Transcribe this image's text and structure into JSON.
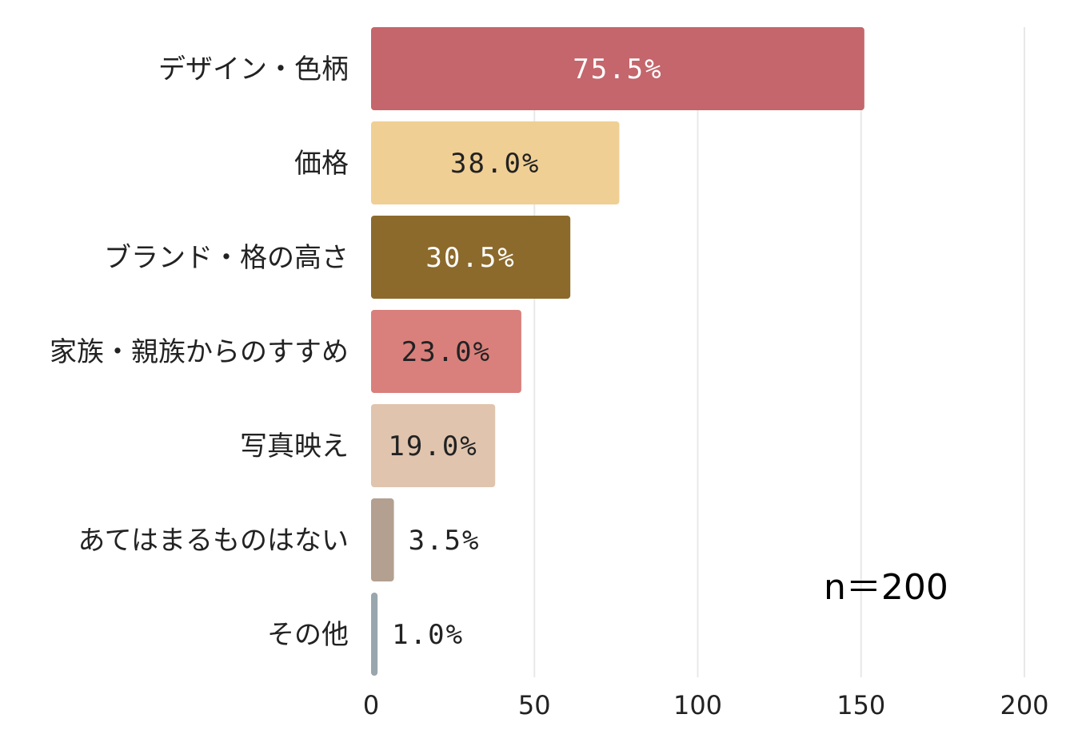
{
  "chart_data": {
    "type": "bar",
    "orientation": "horizontal",
    "categories": [
      "デザイン・色柄",
      "価格",
      "ブランド・格の高さ",
      "家族・親族からのすすめ",
      "写真映え",
      "あてはまるものはない",
      "その他"
    ],
    "values": [
      151,
      76,
      61,
      46,
      38,
      7,
      2
    ],
    "data_labels": [
      "75.5%",
      "38.0%",
      "30.5%",
      "23.0%",
      "19.0%",
      "3.5%",
      "1.0%"
    ],
    "colors": [
      "#c4666c",
      "#f0cf94",
      "#8c6a2c",
      "#d9807c",
      "#e0c4ae",
      "#b3a090",
      "#9aa6ad"
    ],
    "label_colors": [
      "#ffffff",
      "#222222",
      "#ffffff",
      "#222222",
      "#222222",
      "#222222",
      "#222222"
    ],
    "xlim": [
      0,
      200
    ],
    "xticks": [
      0,
      50,
      100,
      150,
      200
    ],
    "xtick_labels": [
      "0",
      "50",
      "100",
      "150",
      "200"
    ],
    "grid": true,
    "annotation": "n＝200"
  }
}
